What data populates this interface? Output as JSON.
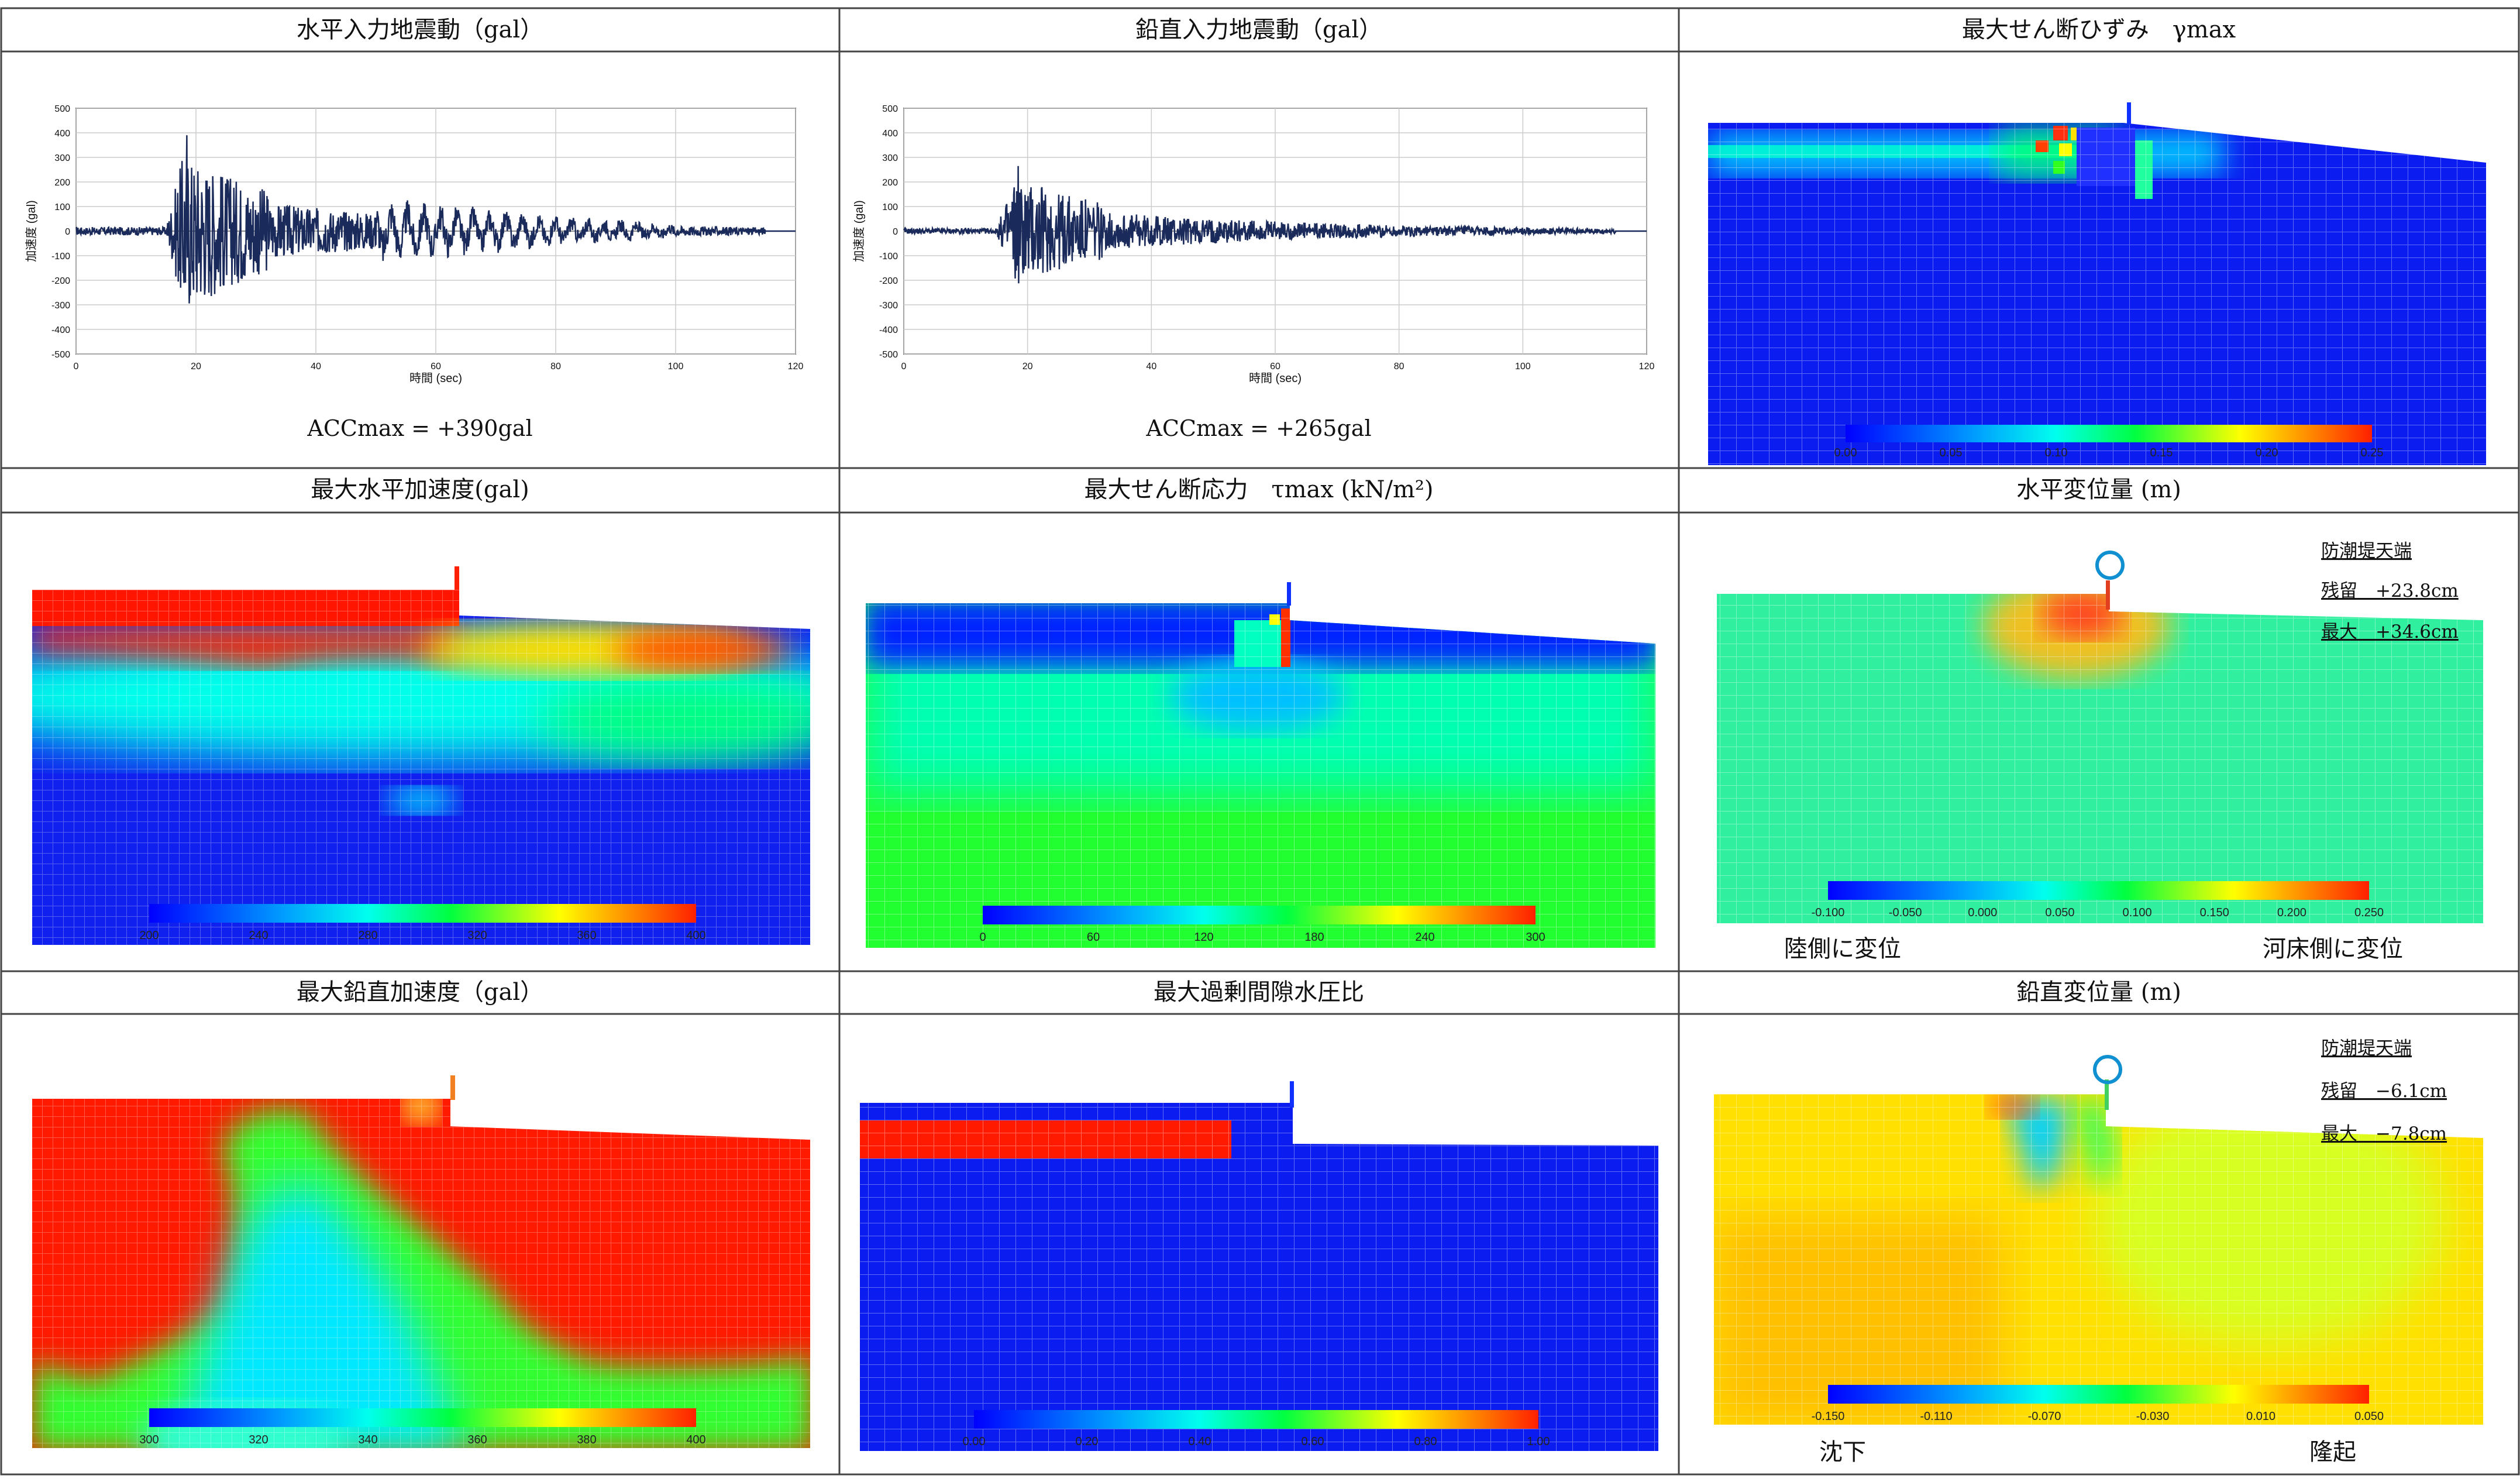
{
  "panels": {
    "p1": {
      "title": "水平入力地震動（gal）",
      "acc": "ACCmax = +390gal"
    },
    "p2": {
      "title": "鉛直入力地震動（gal）",
      "acc": "ACCmax = +265gal"
    },
    "p3": {
      "title": "最大せん断ひずみ　γmax",
      "colorbar": [
        "0.00",
        "0.05",
        "0.10",
        "0.15",
        "0.20",
        "0.25"
      ]
    },
    "p4": {
      "title": "最大水平加速度(gal)",
      "colorbar": [
        "200",
        "240",
        "280",
        "320",
        "360",
        "400"
      ]
    },
    "p5": {
      "title": "最大せん断応力　τmax (kN/m²)",
      "colorbar": [
        "0",
        "60",
        "120",
        "180",
        "240",
        "300"
      ]
    },
    "p6": {
      "title": "水平変位量 (m)",
      "colorbar": [
        "-0.100",
        "-0.050",
        "0.000",
        "0.050",
        "0.100",
        "0.150",
        "0.200",
        "0.250"
      ],
      "note_title": "防潮堤天端",
      "note_residual": "残留　+23.8cm",
      "note_max": "最大　+34.6cm",
      "left_label": "陸側に変位",
      "right_label": "河床側に変位"
    },
    "p7": {
      "title": "最大鉛直加速度（gal）",
      "colorbar": [
        "300",
        "320",
        "340",
        "360",
        "380",
        "400"
      ]
    },
    "p8": {
      "title": "最大過剰間隙水圧比",
      "colorbar": [
        "0.00",
        "0.20",
        "0.40",
        "0.60",
        "0.80",
        "1.00"
      ]
    },
    "p9": {
      "title": "鉛直変位量 (m)",
      "colorbar": [
        "-0.150",
        "-0.110",
        "-0.070",
        "-0.030",
        "0.010",
        "0.050"
      ],
      "note_title": "防潮堤天端",
      "note_residual": "残留　−6.1cm",
      "note_max": "最大　−7.8cm",
      "left_label": "沈下",
      "right_label": "隆起"
    }
  },
  "chart_data": [
    {
      "type": "line",
      "ylabel": "加速度 (gal)",
      "xlabel": "時間 (sec)",
      "xlim": [
        0,
        120
      ],
      "ylim": [
        -500,
        500
      ],
      "x_ticks": [
        "0",
        "20",
        "40",
        "60",
        "80",
        "100",
        "120"
      ],
      "y_ticks": [
        "500",
        "400",
        "300",
        "200",
        "100",
        "0",
        "-100",
        "-200",
        "-300",
        "-400",
        "-500"
      ],
      "peak": 390
    },
    {
      "type": "line",
      "ylabel": "加速度 (gal)",
      "xlabel": "時間 (sec)",
      "xlim": [
        0,
        120
      ],
      "ylim": [
        -500,
        500
      ],
      "x_ticks": [
        "0",
        "20",
        "40",
        "60",
        "80",
        "100",
        "120"
      ],
      "y_ticks": [
        "500",
        "400",
        "300",
        "200",
        "100",
        "0",
        "-100",
        "-200",
        "-300",
        "-400",
        "-500"
      ],
      "peak": 265
    }
  ]
}
